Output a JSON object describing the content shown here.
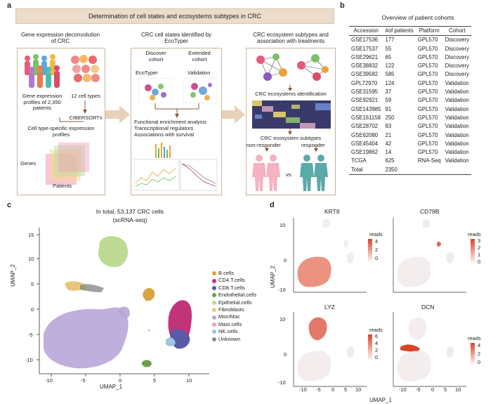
{
  "panel_a": {
    "letter": "a",
    "banner": "Determination of cell states and ecosystems subtypes in CRC",
    "left": {
      "title": "Gene expression deconvolution of CRC",
      "profiles_text": "Gene expression profiles of 2,350 patients",
      "cell_types": "12 cell types",
      "method": "CIBERSORTx",
      "result": "Cell type-specific expression profiles",
      "axis_genes": "Genes",
      "axis_patients": "Patients"
    },
    "middle": {
      "title": "CRC cell states identified by EcoTyper",
      "discover": "Discover cohort",
      "extended": "Extended cohort",
      "ecotyper": "EcoTyper",
      "validation": "Validation",
      "analyses": [
        "Functional enrichment analysis",
        "Transcriptional regulators",
        "Associations with survival"
      ]
    },
    "right": {
      "title": "CRC ecosystem subtypes and association with treatments",
      "identification": "CRC ecosystems identification",
      "subtype": "CRC ecosystem subtypes",
      "non_responder": "non-responder",
      "responder": "responder",
      "vs": "vs."
    }
  },
  "panel_b": {
    "letter": "b",
    "title": "Overview of patient cohorts",
    "headers": [
      "Accession",
      "#of patients",
      "Platform",
      "Cohort"
    ],
    "rows": [
      [
        "GSE17536",
        "177",
        "GPL570",
        "Discovery"
      ],
      [
        "GSE17537",
        "55",
        "GPL570",
        "Discovery"
      ],
      [
        "GSE29621",
        "65",
        "GPL570",
        "Discovery"
      ],
      [
        "GSE38832",
        "122",
        "GPL570",
        "Discovery"
      ],
      [
        "GSE39582",
        "585",
        "GPL570",
        "Discovery"
      ],
      [
        "GPL72970",
        "124",
        "GPL570",
        "Validation"
      ],
      [
        "GSE31595",
        "37",
        "GPL570",
        "Validation"
      ],
      [
        "GSE92921",
        "59",
        "GPL570",
        "Validation"
      ],
      [
        "GSE143985",
        "91",
        "GPL570",
        "Validation"
      ],
      [
        "GSE161158",
        "250",
        "GPL570",
        "Validation"
      ],
      [
        "GSE28702",
        "83",
        "GPL570",
        "Validation"
      ],
      [
        "GSE62080",
        "21",
        "GPL570",
        "Validation"
      ],
      [
        "GSE45404",
        "42",
        "GPL570",
        "Validation"
      ],
      [
        "GSE19862",
        "14",
        "GPL570",
        "Validation"
      ],
      [
        "TCGA",
        "625",
        "RNA-Seq",
        "Validation"
      ],
      [
        "Total",
        "2350",
        "",
        ""
      ]
    ]
  },
  "panel_c": {
    "letter": "c",
    "title": "In total, 53,137 CRC cells",
    "subtitle": "(scRNA-seq)",
    "xlabel": "UMAP_1",
    "ylabel": "UMAP_2",
    "xticks": [
      "-10",
      "-5",
      "0",
      "5",
      "10"
    ],
    "yticks": [
      "15",
      "10",
      "5",
      "0",
      "-5",
      "-10"
    ],
    "legend": [
      {
        "label": "B.cells",
        "color": "#d9a441"
      },
      {
        "label": "CD4.T.cells",
        "color": "#c2337a"
      },
      {
        "label": "CD8.T.cells",
        "color": "#5a5aa8"
      },
      {
        "label": "Endothelial.cells",
        "color": "#6b9e4a"
      },
      {
        "label": "Epithelial.cells",
        "color": "#b9d98c"
      },
      {
        "label": "Fibroblasts",
        "color": "#e8c77a"
      },
      {
        "label": "Mon/Mac",
        "color": "#b8a6d9"
      },
      {
        "label": "Mast.cells",
        "color": "#f2a0b8"
      },
      {
        "label": "NK.cells",
        "color": "#9fc6e0"
      },
      {
        "label": "Unknown",
        "color": "#8a8a8a"
      }
    ]
  },
  "panel_d": {
    "letter": "d",
    "xlabel": "UMAP_1",
    "ylabel": "UMAP_2",
    "plots": [
      {
        "gene": "KRT8",
        "legend_title": "reads",
        "legend_ticks": [
          "4",
          "2",
          "0"
        ]
      },
      {
        "gene": "CD79B",
        "legend_title": "reads",
        "legend_ticks": [
          "3",
          "2",
          "1",
          "0"
        ]
      },
      {
        "gene": "LYZ",
        "legend_title": "reads",
        "legend_ticks": [
          "6",
          "4",
          "2",
          "0"
        ]
      },
      {
        "gene": "DCN",
        "legend_title": "reads",
        "legend_ticks": [
          "4",
          "2",
          "0"
        ]
      }
    ],
    "xticks": [
      "-10",
      "-5",
      "0",
      "5",
      "10"
    ],
    "yticks": [
      "10",
      "0",
      "-10"
    ]
  },
  "colors": {
    "banner": "#ecdccb",
    "arrow": "#e7d2b9",
    "box_border": "#c7b49c"
  }
}
